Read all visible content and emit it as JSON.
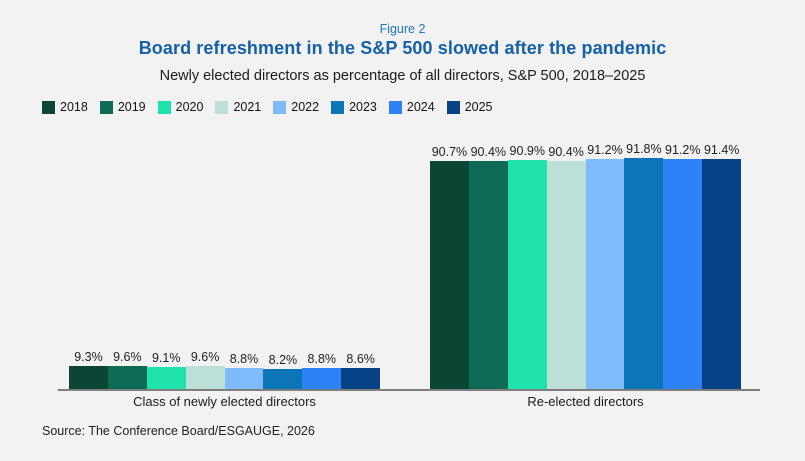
{
  "figure_label": "Figure 2",
  "title": "Board refreshment in the S&P 500 slowed after the pandemic",
  "subtitle": "Newly elected directors as percentage of all directors, S&P 500, 2018–2025",
  "source": "Source: The Conference Board/ESGAUGE, 2026",
  "colors": {
    "background": "#f2f2f2",
    "figure_label": "#1e78bd",
    "title": "#1460a9",
    "subtitle": "#1c1c1c",
    "axis_line": "#7e7e7e"
  },
  "chart_data": {
    "type": "bar",
    "title": "Board refreshment in the S&P 500 slowed after the pandemic",
    "subtitle": "Newly elected directors as percentage of all directors, S&P 500, 2018–2025",
    "categories": [
      "Class of newly elected directors",
      "Re-elected directors"
    ],
    "series": [
      {
        "name": "2018",
        "color": "#0b4634",
        "values": [
          9.3,
          90.7
        ]
      },
      {
        "name": "2019",
        "color": "#0e6b56",
        "values": [
          9.6,
          90.4
        ]
      },
      {
        "name": "2020",
        "color": "#20e3ab",
        "values": [
          9.1,
          90.9
        ]
      },
      {
        "name": "2021",
        "color": "#bcdfd8",
        "values": [
          9.6,
          90.4
        ]
      },
      {
        "name": "2022",
        "color": "#7fbbfa",
        "values": [
          8.8,
          91.2
        ]
      },
      {
        "name": "2023",
        "color": "#0a76b8",
        "values": [
          8.2,
          91.8
        ]
      },
      {
        "name": "2024",
        "color": "#2e82f8",
        "values": [
          8.8,
          91.2
        ]
      },
      {
        "name": "2025",
        "color": "#084286",
        "values": [
          8.6,
          91.4
        ]
      }
    ],
    "value_suffix": "%",
    "ylim": [
      0,
      100
    ],
    "grid": false,
    "legend_position": "top-left",
    "value_labels": "above-bars"
  }
}
